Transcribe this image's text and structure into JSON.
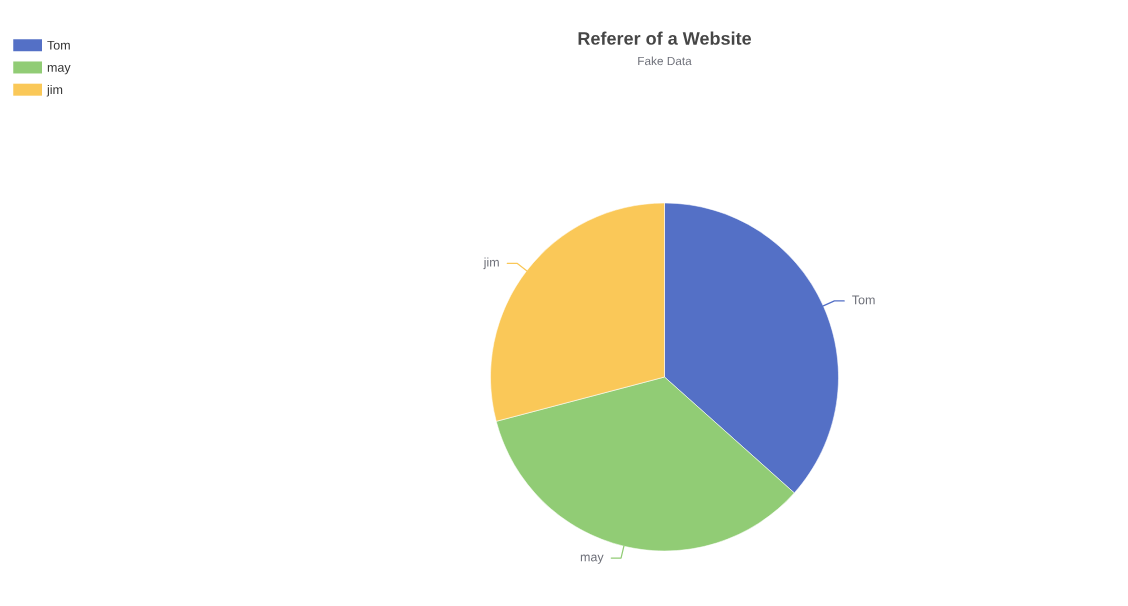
{
  "chart_data": {
    "type": "pie",
    "title": "Referer of a Website",
    "subtitle": "Fake Data",
    "categories": [
      "Tom",
      "may",
      "jim"
    ],
    "values": [
      36.6,
      34.3,
      29.1
    ],
    "colors": [
      "#5470c6",
      "#91cc75",
      "#fac858"
    ],
    "legend": "top left"
  }
}
